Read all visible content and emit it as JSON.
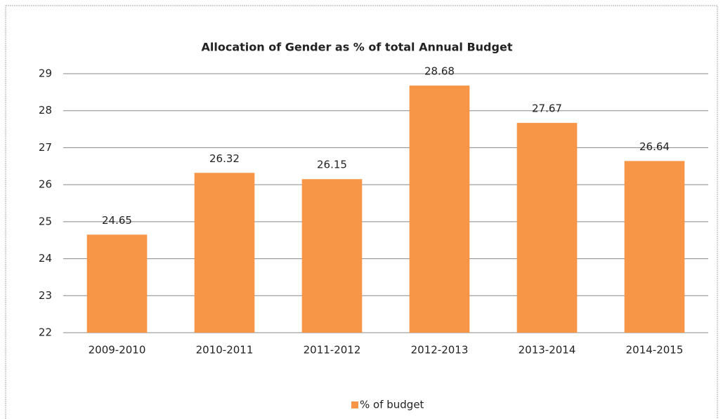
{
  "chart_data": {
    "type": "bar",
    "title": "Allocation of Gender as % of total Annual Budget",
    "categories": [
      "2009-2010",
      "2010-2011",
      "2011-2012",
      "2012-2013",
      "2013-2014",
      "2014-2015"
    ],
    "series": [
      {
        "name": "% of budget",
        "color": "#f79646",
        "values": [
          24.65,
          26.32,
          26.15,
          28.68,
          27.67,
          26.64
        ]
      }
    ],
    "ylim": [
      22,
      29
    ],
    "yticks": [
      22,
      23,
      24,
      25,
      26,
      27,
      28,
      29
    ],
    "grid": true,
    "legend": "bottom"
  }
}
